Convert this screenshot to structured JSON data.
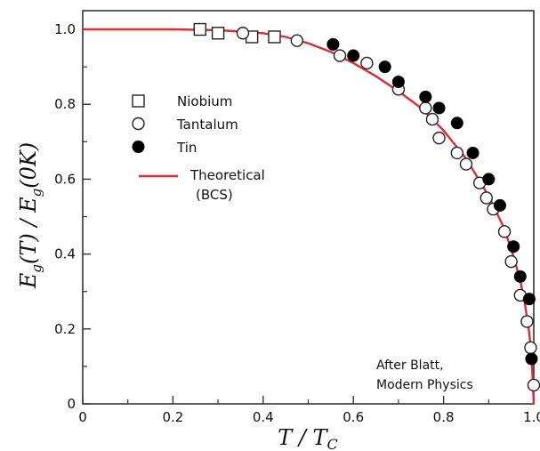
{
  "chart_data": {
    "type": "scatter",
    "title": "",
    "xlabel": "T / Tc",
    "ylabel": "Eg(T) / Eg(0K)",
    "xlim": [
      0,
      1.0
    ],
    "ylim": [
      0,
      1.05
    ],
    "x_ticks": [
      {
        "value": 0,
        "label": "0"
      },
      {
        "value": 0.2,
        "label": "0.2"
      },
      {
        "value": 0.4,
        "label": "0.4"
      },
      {
        "value": 0.6,
        "label": "0.6"
      },
      {
        "value": 0.8,
        "label": "0.8"
      },
      {
        "value": 1.0,
        "label": "1.0"
      }
    ],
    "y_ticks": [
      {
        "value": 0,
        "label": "0"
      },
      {
        "value": 0.2,
        "label": "0.2"
      },
      {
        "value": 0.4,
        "label": "0.4"
      },
      {
        "value": 0.6,
        "label": "0.6"
      },
      {
        "value": 0.8,
        "label": "0.8"
      },
      {
        "value": 1.0,
        "label": "1.0"
      }
    ],
    "grid": false,
    "legend_position": "left",
    "series": [
      {
        "name": "Niobium",
        "marker": "open-square",
        "color": "#222222",
        "points": [
          {
            "x": 0.26,
            "y": 1.0
          },
          {
            "x": 0.3,
            "y": 0.99
          },
          {
            "x": 0.375,
            "y": 0.98
          },
          {
            "x": 0.425,
            "y": 0.98
          }
        ]
      },
      {
        "name": "Tantalum",
        "marker": "open-circle",
        "color": "#222222",
        "points": [
          {
            "x": 0.355,
            "y": 0.99
          },
          {
            "x": 0.475,
            "y": 0.97
          },
          {
            "x": 0.57,
            "y": 0.93
          },
          {
            "x": 0.63,
            "y": 0.91
          },
          {
            "x": 0.7,
            "y": 0.84
          },
          {
            "x": 0.76,
            "y": 0.79
          },
          {
            "x": 0.775,
            "y": 0.76
          },
          {
            "x": 0.79,
            "y": 0.71
          },
          {
            "x": 0.83,
            "y": 0.67
          },
          {
            "x": 0.85,
            "y": 0.64
          },
          {
            "x": 0.88,
            "y": 0.59
          },
          {
            "x": 0.895,
            "y": 0.55
          },
          {
            "x": 0.91,
            "y": 0.52
          },
          {
            "x": 0.935,
            "y": 0.46
          },
          {
            "x": 0.95,
            "y": 0.38
          },
          {
            "x": 0.97,
            "y": 0.29
          },
          {
            "x": 0.985,
            "y": 0.22
          },
          {
            "x": 0.993,
            "y": 0.15
          },
          {
            "x": 1.0,
            "y": 0.05
          }
        ]
      },
      {
        "name": "Tin",
        "marker": "filled-circle",
        "color": "#000000",
        "points": [
          {
            "x": 0.555,
            "y": 0.96
          },
          {
            "x": 0.6,
            "y": 0.93
          },
          {
            "x": 0.67,
            "y": 0.9
          },
          {
            "x": 0.7,
            "y": 0.86
          },
          {
            "x": 0.76,
            "y": 0.82
          },
          {
            "x": 0.79,
            "y": 0.79
          },
          {
            "x": 0.83,
            "y": 0.75
          },
          {
            "x": 0.865,
            "y": 0.67
          },
          {
            "x": 0.9,
            "y": 0.6
          },
          {
            "x": 0.925,
            "y": 0.53
          },
          {
            "x": 0.955,
            "y": 0.42
          },
          {
            "x": 0.97,
            "y": 0.34
          },
          {
            "x": 0.99,
            "y": 0.28
          },
          {
            "x": 0.995,
            "y": 0.12
          }
        ]
      }
    ],
    "theory": {
      "name": "Theoretical",
      "name_line2": "(BCS)",
      "color": "#e8282e",
      "points": [
        {
          "x": 0.0,
          "y": 1.0
        },
        {
          "x": 0.2,
          "y": 1.0
        },
        {
          "x": 0.3,
          "y": 0.998
        },
        {
          "x": 0.4,
          "y": 0.99
        },
        {
          "x": 0.45,
          "y": 0.98
        },
        {
          "x": 0.5,
          "y": 0.963
        },
        {
          "x": 0.55,
          "y": 0.94
        },
        {
          "x": 0.6,
          "y": 0.91
        },
        {
          "x": 0.65,
          "y": 0.875
        },
        {
          "x": 0.7,
          "y": 0.835
        },
        {
          "x": 0.75,
          "y": 0.79
        },
        {
          "x": 0.8,
          "y": 0.73
        },
        {
          "x": 0.85,
          "y": 0.655
        },
        {
          "x": 0.9,
          "y": 0.555
        },
        {
          "x": 0.93,
          "y": 0.48
        },
        {
          "x": 0.95,
          "y": 0.415
        },
        {
          "x": 0.97,
          "y": 0.33
        },
        {
          "x": 0.98,
          "y": 0.27
        },
        {
          "x": 0.99,
          "y": 0.19
        },
        {
          "x": 0.995,
          "y": 0.13
        },
        {
          "x": 1.0,
          "y": 0.0
        }
      ]
    },
    "annotation": [
      "After Blatt,",
      "Modern Physics"
    ]
  }
}
